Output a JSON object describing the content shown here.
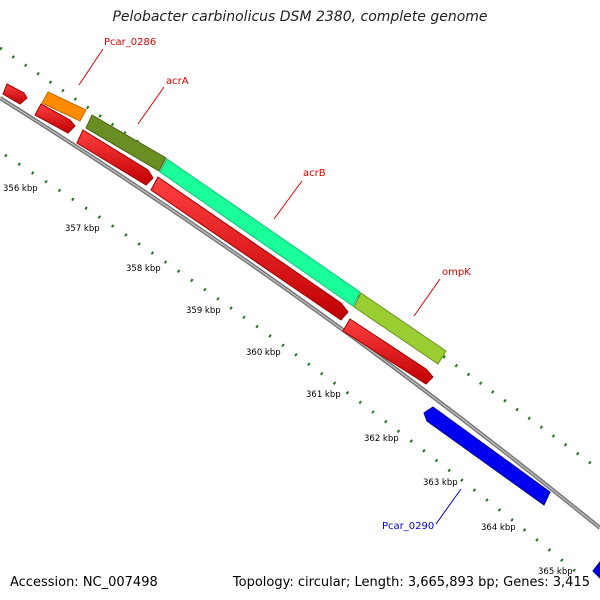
{
  "title": "Pelobacter carbinolicus DSM 2380, complete genome",
  "footer": {
    "accession": "Accession: NC_007498",
    "summary": "Topology: circular; Length: 3,665,893 bp; Genes: 3,415"
  },
  "colors": {
    "backbone": "#888888",
    "tick": "#1a7a1a",
    "forward_cds": "#ff0000",
    "orange": "#ff8c00",
    "olive": "#6b8e23",
    "aquamarine": "#1aff9a",
    "yellowgreen": "#9acd32",
    "blue": "#0000ee",
    "label_red": "#dd0000",
    "label_blue": "#0000cc"
  },
  "scale_labels": [
    "356 kbp",
    "357 kbp",
    "358 kbp",
    "359 kbp",
    "360 kbp",
    "361 kbp",
    "362 kbp",
    "363 kbp",
    "364 kbp",
    "365 kbp"
  ],
  "gene_labels": [
    {
      "text": "Pcar_0286",
      "color": "label_red"
    },
    {
      "text": "acrA",
      "color": "label_red"
    },
    {
      "text": "acrB",
      "color": "label_red"
    },
    {
      "text": "ompK",
      "color": "label_red"
    },
    {
      "text": "Pcar_0290",
      "color": "label_blue"
    }
  ]
}
